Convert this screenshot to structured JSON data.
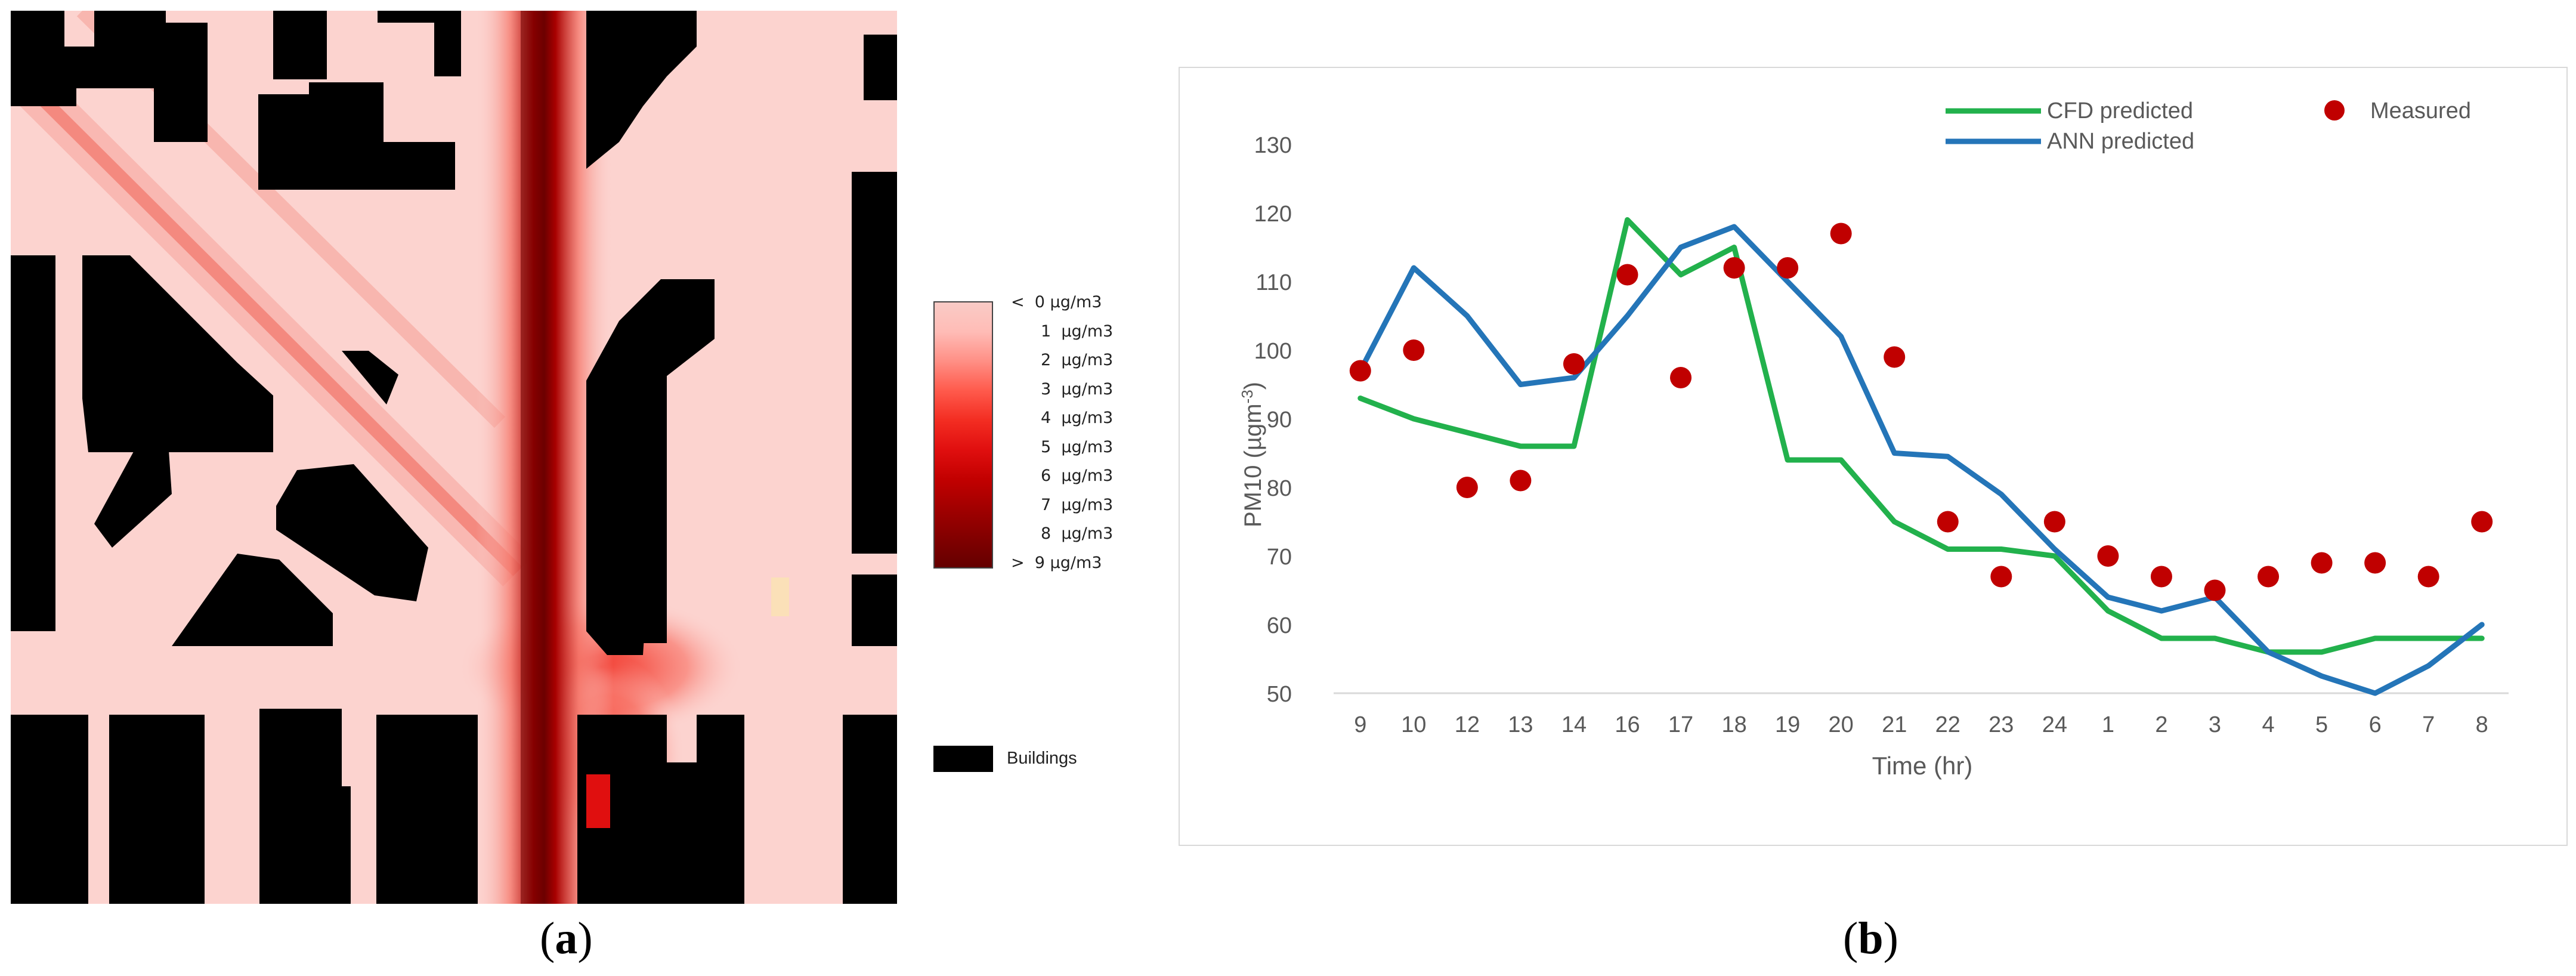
{
  "panel_a": {
    "label_open": "(",
    "label_letter": "a",
    "label_close": ")",
    "colorbar_colors": [
      "#f9cbc6",
      "#ffbcb6",
      "#ff8f85",
      "#ff5a4c",
      "#f32d22",
      "#e00f0f",
      "#c20000",
      "#a10000",
      "#820000",
      "#640000"
    ],
    "legend_labels": [
      "<  0 µg/m3",
      "1  µg/m3",
      "2  µg/m3",
      "3  µg/m3",
      "4  µg/m3",
      "5  µg/m3",
      "6  µg/m3",
      "7  µg/m3",
      "8  µg/m3",
      ">  9 µg/m3"
    ],
    "buildings_label": "Buildings",
    "background_color": "#fcd3cf",
    "building_color": "#000000"
  },
  "panel_b": {
    "label_open": "(",
    "label_letter": "b",
    "label_close": ")"
  },
  "chart_data": {
    "type": "line",
    "title": "",
    "xlabel": "Time (hr)",
    "ylabel_main": "PM10 (µgm",
    "ylabel_sup": "-3",
    "ylabel_close": ")",
    "ylim": [
      50,
      130
    ],
    "yticks": [
      50,
      60,
      70,
      80,
      90,
      100,
      110,
      120,
      130
    ],
    "x": [
      "9",
      "10",
      "12",
      "13",
      "14",
      "16",
      "17",
      "18",
      "19",
      "20",
      "21",
      "22",
      "23",
      "24",
      "1",
      "2",
      "3",
      "4",
      "5",
      "6",
      "7",
      "8"
    ],
    "grid": false,
    "legend_position": "top-right",
    "series": [
      {
        "name": "CFD predicted",
        "kind": "line",
        "color": "#22b14c",
        "values": [
          93,
          90,
          88,
          86,
          86,
          119,
          111,
          115,
          84,
          84,
          75,
          71,
          71,
          70,
          62,
          58,
          58,
          56,
          56,
          58,
          58,
          58
        ]
      },
      {
        "name": "ANN predicted",
        "kind": "line",
        "color": "#2475b8",
        "values": [
          97,
          112,
          105,
          95,
          96,
          105,
          115,
          118,
          110,
          102,
          85,
          84.5,
          79,
          71,
          64,
          62,
          64,
          56,
          52.5,
          50,
          54,
          60
        ]
      },
      {
        "name": "Measured",
        "kind": "scatter",
        "color": "#c00000",
        "values": [
          97,
          100,
          80,
          81,
          98,
          111,
          96,
          112,
          112,
          117,
          99,
          75,
          67,
          75,
          70,
          67,
          65,
          67,
          69,
          69,
          67,
          75
        ]
      }
    ]
  }
}
